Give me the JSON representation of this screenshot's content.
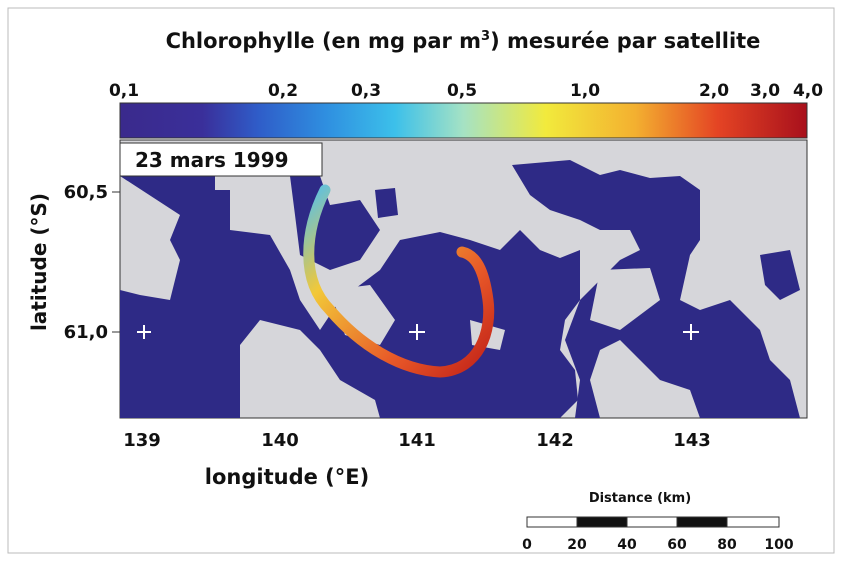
{
  "title": {
    "before": "Chlorophylle (en mg par m",
    "sup": "3",
    "after": ") mesurée par satellite"
  },
  "colorbar": {
    "ticks": [
      "0,1",
      "0,2",
      "0,3",
      "0,5",
      "1,0",
      "2,0",
      "3,0",
      "4,0"
    ]
  },
  "date": "23 mars 1999",
  "latitude": {
    "label": "latitude (°S)",
    "ticks": [
      "60,5",
      "61,0"
    ]
  },
  "longitude": {
    "label": "longitude (°E)",
    "ticks": [
      "139",
      "140",
      "141",
      "142",
      "143"
    ]
  },
  "scale": {
    "title": "Distance (km)",
    "ticks": [
      "0",
      "20",
      "40",
      "60",
      "80",
      "100"
    ]
  }
}
